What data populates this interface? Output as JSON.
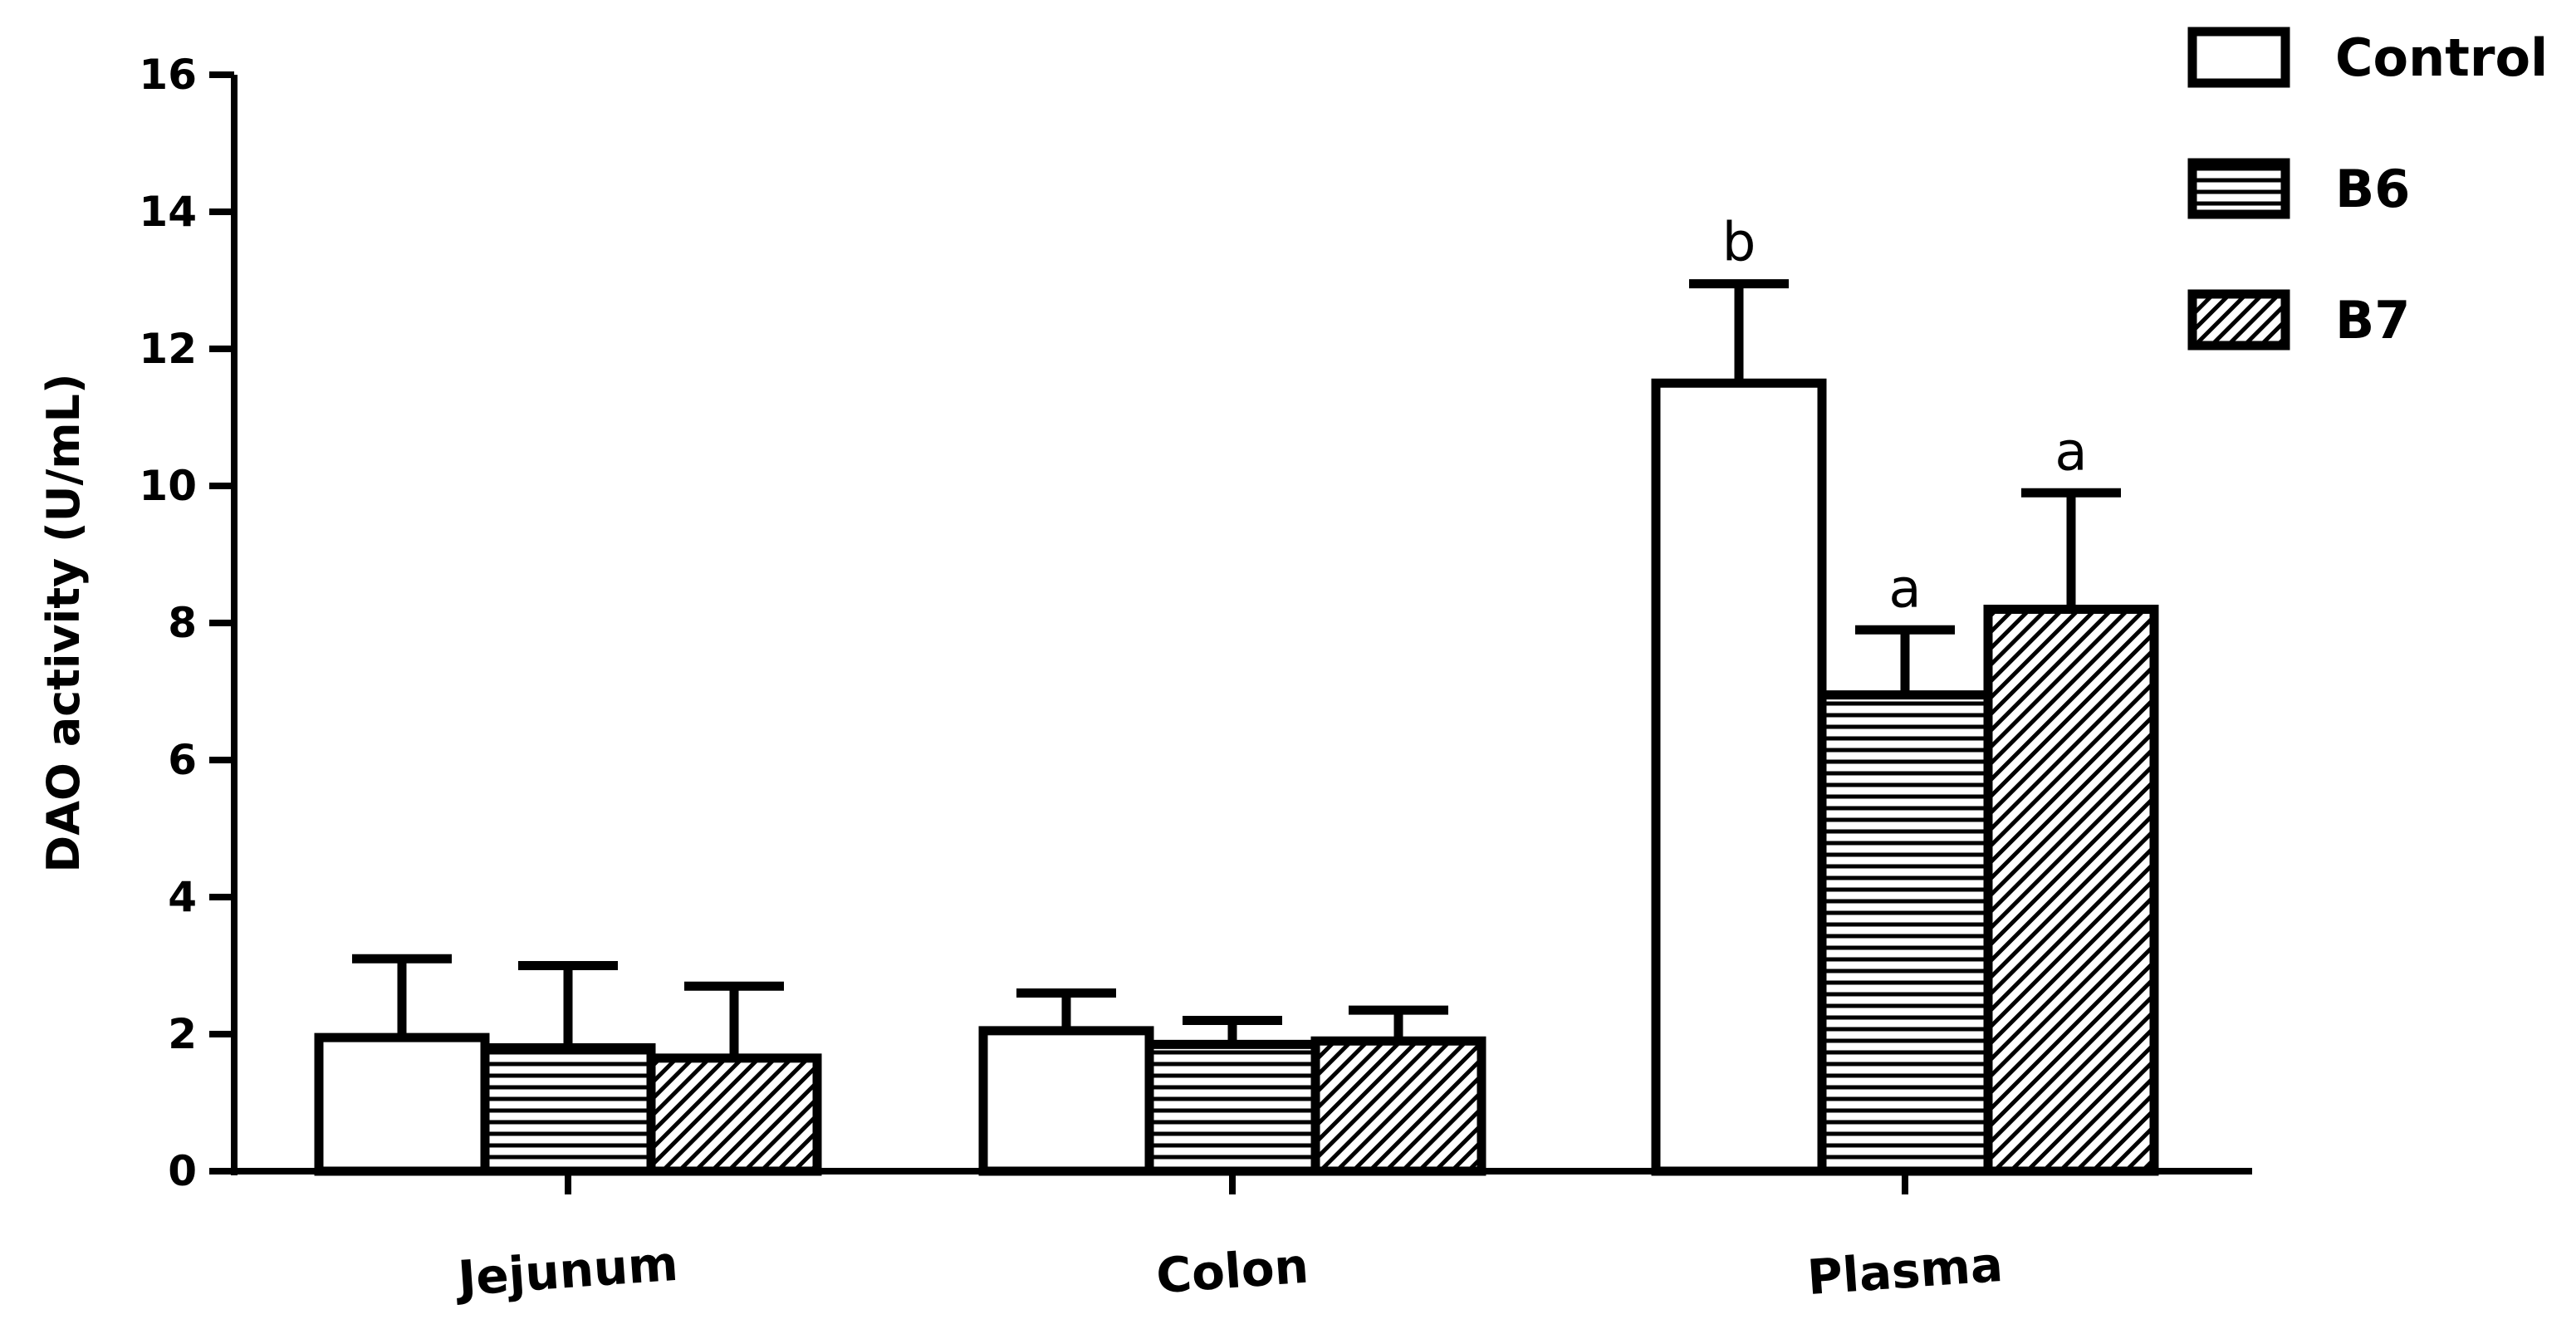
{
  "chart_data": {
    "type": "bar",
    "title": "",
    "xlabel": "",
    "ylabel": "DAO activity (U/mL)",
    "ylim": [
      0,
      16
    ],
    "yticks": [
      "0",
      "2",
      "4",
      "6",
      "8",
      "10",
      "12",
      "14",
      "16"
    ],
    "categories": [
      "Jejunum",
      "Colon",
      "Plasma"
    ],
    "series": [
      {
        "name": "Control",
        "pattern": "none",
        "values": [
          1.95,
          2.05,
          11.5
        ],
        "errors": [
          1.15,
          0.55,
          1.45
        ],
        "labels": [
          "",
          "",
          "b"
        ]
      },
      {
        "name": "B6",
        "pattern": "horizontal-lines",
        "values": [
          1.8,
          1.85,
          6.95
        ],
        "errors": [
          1.2,
          0.35,
          0.95
        ],
        "labels": [
          "",
          "",
          "a"
        ]
      },
      {
        "name": "B7",
        "pattern": "diagonal-lines",
        "values": [
          1.65,
          1.9,
          8.2
        ],
        "errors": [
          1.05,
          0.45,
          1.7
        ],
        "labels": [
          "",
          "",
          "a"
        ]
      }
    ],
    "legend": "top-right",
    "grid": false,
    "colors": {
      "stroke": "#000000",
      "fill": "#ffffff"
    }
  }
}
